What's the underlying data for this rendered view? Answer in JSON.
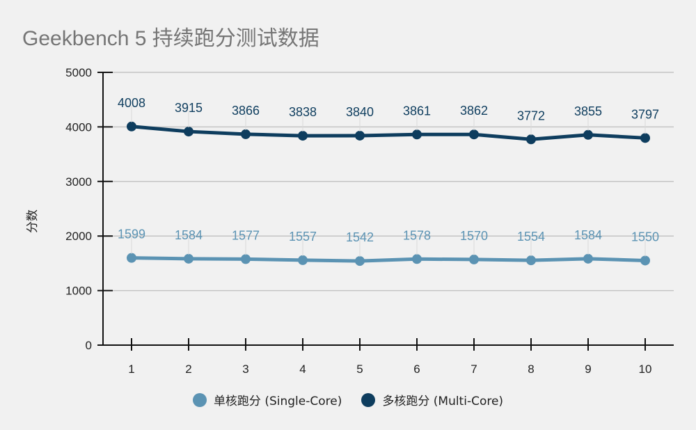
{
  "chart_data": {
    "type": "line",
    "title": "Geekbench 5 持续跑分测试数据",
    "xlabel": "",
    "ylabel": "分数",
    "x": [
      1,
      2,
      3,
      4,
      5,
      6,
      7,
      8,
      9,
      10
    ],
    "ylim": [
      0,
      5000
    ],
    "yticks": [
      0,
      1000,
      2000,
      3000,
      4000,
      5000
    ],
    "grid": true,
    "legend_position": "bottom",
    "series": [
      {
        "name": "单核跑分 (Single-Core)",
        "color": "#5b93b3",
        "values": [
          1599,
          1584,
          1577,
          1557,
          1542,
          1578,
          1570,
          1554,
          1584,
          1550
        ]
      },
      {
        "name": "多核跑分 (Multi-Core)",
        "color": "#0e3d5e",
        "values": [
          4008,
          3915,
          3866,
          3838,
          3840,
          3861,
          3862,
          3772,
          3855,
          3797
        ]
      }
    ]
  }
}
